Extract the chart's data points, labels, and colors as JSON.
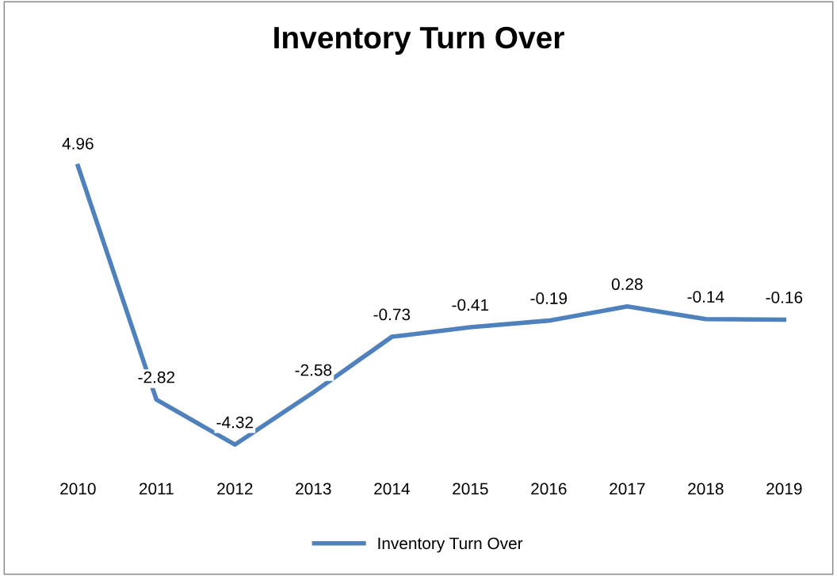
{
  "chart_data": {
    "type": "line",
    "title": "Inventory Turn Over",
    "categories": [
      "2010",
      "2011",
      "2012",
      "2013",
      "2014",
      "2015",
      "2016",
      "2017",
      "2018",
      "2019"
    ],
    "series": [
      {
        "name": "Inventory Turn Over",
        "color": "#4f81bd",
        "values": [
          4.96,
          -2.82,
          -4.32,
          -2.58,
          -0.73,
          -0.41,
          -0.19,
          0.28,
          -0.14,
          -0.16
        ]
      }
    ],
    "data_labels": true,
    "legend": "bottom",
    "grid": false
  }
}
